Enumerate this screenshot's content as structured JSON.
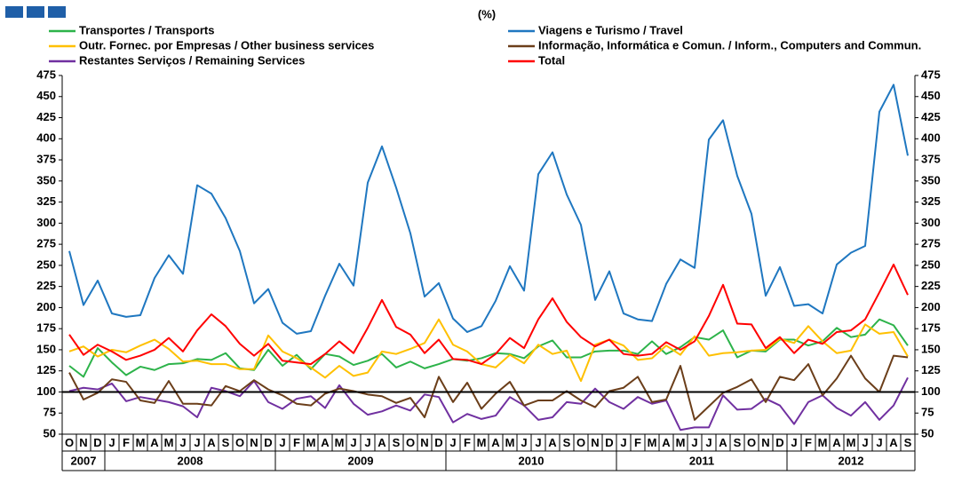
{
  "chart_data": {
    "type": "line",
    "title": "(%)",
    "categories": [
      "O",
      "N",
      "D",
      "J",
      "F",
      "M",
      "A",
      "M",
      "J",
      "J",
      "A",
      "S",
      "O",
      "N",
      "D",
      "J",
      "F",
      "M",
      "A",
      "M",
      "J",
      "J",
      "A",
      "S",
      "O",
      "N",
      "D",
      "J",
      "F",
      "M",
      "A",
      "M",
      "J",
      "J",
      "A",
      "S",
      "O",
      "N",
      "D",
      "J",
      "F",
      "M",
      "A",
      "M",
      "J",
      "J",
      "A",
      "S",
      "O",
      "N",
      "D",
      "J",
      "F",
      "M",
      "A",
      "M",
      "J",
      "J",
      "A",
      "S"
    ],
    "years": [
      "2007",
      "2008",
      "2009",
      "2010",
      "2011",
      "2012"
    ],
    "ylim": [
      50,
      475
    ],
    "yticks": [
      50,
      75,
      100,
      125,
      150,
      175,
      200,
      225,
      250,
      275,
      300,
      325,
      350,
      375,
      400,
      425,
      450,
      475
    ],
    "y2lim": [
      50,
      475
    ],
    "y2ticks": [
      50,
      75,
      100,
      125,
      150,
      175,
      200,
      225,
      250,
      275,
      300,
      325,
      350,
      375,
      400,
      425,
      450,
      475
    ],
    "reference_line": 100,
    "series": [
      {
        "name": "Transportes / Transports",
        "color": "#2db34a",
        "values": [
          131,
          118,
          152,
          135,
          120,
          130,
          126,
          133,
          134,
          139,
          138,
          146,
          128,
          126,
          150,
          131,
          144,
          127,
          145,
          142,
          132,
          137,
          145,
          129,
          136,
          128,
          133,
          139,
          137,
          140,
          146,
          145,
          140,
          154,
          161,
          141,
          141,
          148,
          149,
          149,
          145,
          160,
          145,
          153,
          165,
          162,
          173,
          141,
          149,
          148,
          162,
          162,
          155,
          160,
          176,
          165,
          168,
          186,
          179,
          155
        ]
      },
      {
        "name": "Outr. Fornec. por Empresas  / Other business services",
        "color": "#ffc000",
        "values": [
          148,
          154,
          142,
          150,
          147,
          155,
          162,
          151,
          136,
          137,
          133,
          133,
          127,
          127,
          167,
          148,
          140,
          129,
          117,
          131,
          119,
          123,
          148,
          145,
          151,
          158,
          186,
          156,
          148,
          133,
          129,
          144,
          134,
          156,
          145,
          149,
          113,
          156,
          162,
          155,
          138,
          140,
          155,
          144,
          166,
          143,
          146,
          147,
          149,
          150,
          163,
          158,
          178,
          160,
          146,
          149,
          180,
          169,
          171,
          142
        ]
      },
      {
        "name": "Restantes Serviços / Remaining Services",
        "color": "#7030a0",
        "values": [
          101,
          105,
          103,
          110,
          89,
          94,
          91,
          88,
          83,
          70,
          105,
          101,
          95,
          113,
          88,
          80,
          92,
          95,
          81,
          108,
          86,
          73,
          77,
          84,
          78,
          97,
          94,
          64,
          74,
          68,
          72,
          94,
          84,
          67,
          70,
          88,
          86,
          104,
          88,
          80,
          94,
          86,
          90,
          55,
          58,
          58,
          96,
          79,
          80,
          92,
          84,
          62,
          88,
          96,
          81,
          72,
          88,
          67,
          84,
          117
        ]
      },
      {
        "name": "Viagens e Turismo / Travel",
        "color": "#1f77c0",
        "values": [
          267,
          203,
          232,
          193,
          189,
          191,
          235,
          262,
          240,
          345,
          335,
          306,
          267,
          205,
          222,
          182,
          169,
          172,
          214,
          252,
          226,
          348,
          391,
          342,
          288,
          213,
          229,
          187,
          171,
          178,
          208,
          249,
          220,
          358,
          384,
          334,
          298,
          209,
          243,
          193,
          186,
          184,
          228,
          257,
          247,
          399,
          422,
          356,
          311,
          214,
          248,
          202,
          204,
          193,
          251,
          265,
          273,
          432,
          464,
          380
        ]
      },
      {
        "name": "Informação, Informática e Comun. /  Inform., Computers and Commun.",
        "color": "#6b3e1a",
        "values": [
          123,
          91,
          99,
          115,
          112,
          90,
          87,
          113,
          86,
          86,
          84,
          107,
          101,
          114,
          103,
          96,
          86,
          84,
          98,
          104,
          101,
          97,
          95,
          87,
          93,
          70,
          118,
          88,
          111,
          80,
          98,
          112,
          84,
          90,
          90,
          101,
          90,
          82,
          101,
          105,
          118,
          88,
          91,
          131,
          67,
          83,
          99,
          106,
          115,
          88,
          118,
          114,
          133,
          96,
          116,
          143,
          116,
          100,
          143,
          141
        ]
      },
      {
        "name": "Total",
        "color": "#ff0000",
        "values": [
          168,
          144,
          156,
          148,
          138,
          143,
          150,
          164,
          148,
          173,
          192,
          178,
          157,
          143,
          157,
          137,
          135,
          133,
          145,
          160,
          146,
          176,
          209,
          177,
          168,
          146,
          162,
          139,
          138,
          133,
          145,
          164,
          152,
          186,
          211,
          183,
          165,
          154,
          162,
          145,
          143,
          145,
          159,
          150,
          160,
          190,
          227,
          181,
          180,
          152,
          165,
          146,
          162,
          157,
          171,
          173,
          186,
          218,
          251,
          215
        ]
      }
    ]
  }
}
